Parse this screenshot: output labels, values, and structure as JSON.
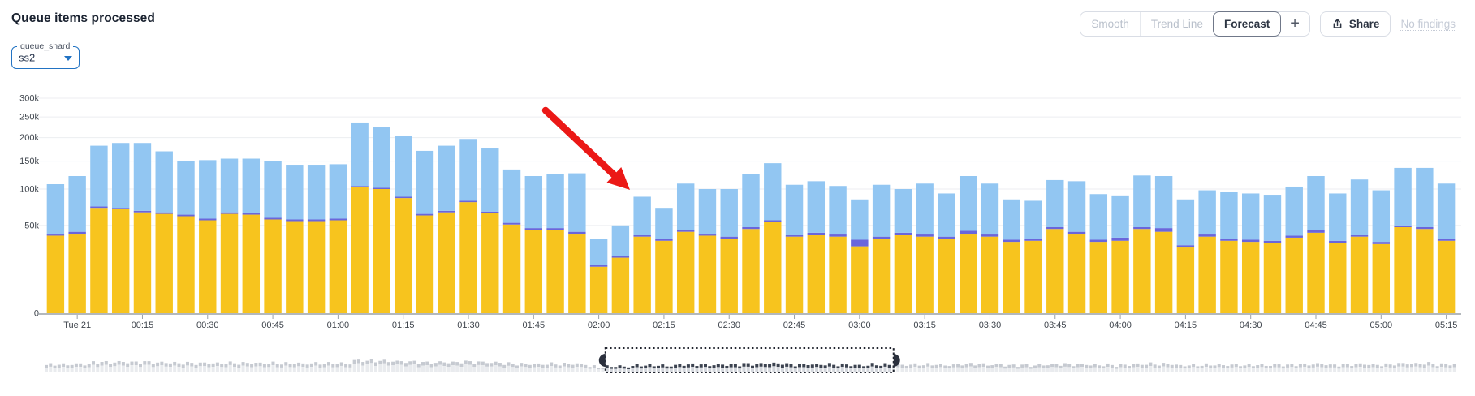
{
  "header": {
    "title": "Queue items processed"
  },
  "controls": {
    "smooth": "Smooth",
    "trend_line": "Trend Line",
    "forecast": "Forecast",
    "add": "+",
    "share": "Share",
    "no_findings": "No findings"
  },
  "filter": {
    "label": "queue_shard",
    "value": "ss2"
  },
  "chart_data": {
    "type": "bar",
    "stacked": true,
    "title": "Queue items processed",
    "y_axis": {
      "scale": "sqrt",
      "min": 0,
      "max": 300000,
      "ticks": [
        {
          "v": 0,
          "label": "0"
        },
        {
          "v": 50000,
          "label": "50k"
        },
        {
          "v": 100000,
          "label": "100k"
        },
        {
          "v": 150000,
          "label": "150k"
        },
        {
          "v": 200000,
          "label": "200k"
        },
        {
          "v": 250000,
          "label": "250k"
        },
        {
          "v": 300000,
          "label": "300k"
        }
      ]
    },
    "bar_interval_minutes": 5,
    "x_tick_labels": [
      "Tue 21",
      "00:15",
      "00:30",
      "00:45",
      "01:00",
      "01:15",
      "01:30",
      "01:45",
      "02:00",
      "02:15",
      "02:30",
      "02:45",
      "03:00",
      "03:15",
      "03:30",
      "03:45",
      "04:00",
      "04:15",
      "04:30",
      "04:45",
      "05:00",
      "05:15"
    ],
    "first_tick_bar_index": 1,
    "x_tick_every_n_bars": 3,
    "series_colors": {
      "bottom": "#F7C41E",
      "middle": "#6A66DB",
      "top": "#92C6F2"
    },
    "grid_color": "#eceef1",
    "axis_color": "#9aa0a6",
    "label_color": "#3e444c",
    "bar_fields": [
      "time",
      "bottom_yellow",
      "middle_purple",
      "total"
    ],
    "bars": [
      [
        "23:55",
        39000,
        2000,
        108000
      ],
      [
        "00:00",
        41000,
        2000,
        122000
      ],
      [
        "00:05",
        72000,
        2000,
        182000
      ],
      [
        "00:10",
        70000,
        2000,
        188000
      ],
      [
        "00:15",
        66000,
        2000,
        188000
      ],
      [
        "00:20",
        64000,
        2000,
        170000
      ],
      [
        "00:25",
        61000,
        2000,
        151000
      ],
      [
        "00:30",
        56000,
        2000,
        152000
      ],
      [
        "00:35",
        64000,
        2000,
        155000
      ],
      [
        "00:40",
        63000,
        2000,
        155000
      ],
      [
        "00:45",
        57000,
        2000,
        150000
      ],
      [
        "00:50",
        55000,
        2000,
        143000
      ],
      [
        "00:55",
        55000,
        2000,
        143000
      ],
      [
        "01:00",
        56000,
        2000,
        144000
      ],
      [
        "01:05",
        103000,
        2000,
        236000
      ],
      [
        "01:10",
        100000,
        2000,
        224000
      ],
      [
        "01:15",
        86000,
        2000,
        203000
      ],
      [
        "01:20",
        62000,
        2000,
        171000
      ],
      [
        "01:25",
        66000,
        2000,
        182000
      ],
      [
        "01:30",
        80000,
        2000,
        197000
      ],
      [
        "01:35",
        65000,
        2000,
        176000
      ],
      [
        "01:40",
        51000,
        2000,
        134000
      ],
      [
        "01:45",
        45000,
        2000,
        122000
      ],
      [
        "01:50",
        45000,
        2000,
        125000
      ],
      [
        "01:55",
        41000,
        2000,
        127000
      ],
      [
        "02:00",
        14000,
        1000,
        36000
      ],
      [
        "02:05",
        20000,
        1000,
        50000
      ],
      [
        "02:10",
        38000,
        2000,
        88000
      ],
      [
        "02:15",
        34000,
        2000,
        72000
      ],
      [
        "02:20",
        43000,
        2000,
        109000
      ],
      [
        "02:25",
        39000,
        2000,
        100000
      ],
      [
        "02:30",
        36000,
        2000,
        100000
      ],
      [
        "02:35",
        46000,
        2000,
        125000
      ],
      [
        "02:40",
        54000,
        2000,
        146000
      ],
      [
        "02:45",
        38000,
        2000,
        107000
      ],
      [
        "02:50",
        40000,
        2000,
        113000
      ],
      [
        "02:55",
        38000,
        3000,
        105000
      ],
      [
        "03:00",
        29000,
        6000,
        84000
      ],
      [
        "03:05",
        36000,
        2000,
        107000
      ],
      [
        "03:10",
        40000,
        2000,
        100000
      ],
      [
        "03:15",
        38000,
        3000,
        109000
      ],
      [
        "03:20",
        36000,
        2000,
        93000
      ],
      [
        "03:25",
        41000,
        3000,
        122000
      ],
      [
        "03:30",
        38000,
        3000,
        109000
      ],
      [
        "03:35",
        33000,
        2000,
        84000
      ],
      [
        "03:40",
        34000,
        2000,
        82000
      ],
      [
        "03:45",
        46000,
        2000,
        115000
      ],
      [
        "03:50",
        41000,
        2000,
        113000
      ],
      [
        "03:55",
        33000,
        2000,
        92000
      ],
      [
        "04:00",
        34000,
        3000,
        90000
      ],
      [
        "04:05",
        46000,
        2000,
        123000
      ],
      [
        "04:10",
        43000,
        4000,
        122000
      ],
      [
        "04:15",
        28000,
        2000,
        84000
      ],
      [
        "04:20",
        38000,
        3000,
        98000
      ],
      [
        "04:25",
        34000,
        2000,
        96000
      ],
      [
        "04:30",
        33000,
        2000,
        93000
      ],
      [
        "04:35",
        32000,
        2000,
        91000
      ],
      [
        "04:40",
        37000,
        2000,
        104000
      ],
      [
        "04:45",
        42000,
        3000,
        122000
      ],
      [
        "04:50",
        32000,
        2000,
        93000
      ],
      [
        "04:55",
        38000,
        2000,
        116000
      ],
      [
        "05:00",
        31000,
        2000,
        98000
      ],
      [
        "05:05",
        48000,
        2000,
        137000
      ],
      [
        "05:10",
        46000,
        2000,
        137000
      ],
      [
        "05:15",
        34000,
        2000,
        109000
      ]
    ],
    "annotation_arrow": {
      "color": "#EB1816",
      "from_xy": [
        672,
        136
      ],
      "to_xy": [
        776,
        234
      ],
      "points_at": "02:05 dip"
    },
    "minimap": {
      "bar_count": 330,
      "selection": {
        "start_frac": 0.397,
        "end_frac": 0.601
      },
      "colors": {
        "out_cap": "#c6cad1",
        "out_body": "#e9ebee",
        "in_cap": "#3c4350",
        "in_body": "#d3d6dc",
        "border": "#20242e",
        "baseline": "#b3b8c0"
      }
    }
  }
}
